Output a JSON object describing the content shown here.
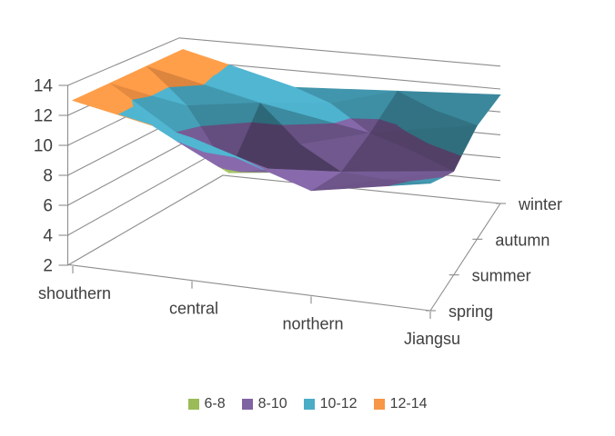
{
  "chart_data": {
    "type": "surface",
    "title": "",
    "category_axis": {
      "categories": [
        "shouthern",
        "central",
        "northern",
        "Jiangsu"
      ]
    },
    "depth_axis": {
      "categories": [
        "spring",
        "summer",
        "autumn",
        "winter"
      ]
    },
    "value_axis": {
      "min": 2,
      "max": 14,
      "step": 2,
      "tick_labels": [
        "2",
        "4",
        "6",
        "8",
        "10",
        "12",
        "14"
      ]
    },
    "series": [
      {
        "name": "spring",
        "values": [
          13,
          11.5,
          9,
          10.5
        ]
      },
      {
        "name": "summer",
        "values": [
          13,
          7.5,
          8.5,
          9.5
        ]
      },
      {
        "name": "autumn",
        "values": [
          13,
          11,
          9.5,
          11
        ]
      },
      {
        "name": "winter",
        "values": [
          13,
          10.5,
          11,
          11.5
        ]
      }
    ],
    "bands": [
      {
        "label": "6-8",
        "min": 6,
        "max": 8,
        "color": "#9BBB59"
      },
      {
        "label": "8-10",
        "min": 8,
        "max": 10,
        "color": "#8064A2"
      },
      {
        "label": "10-12",
        "min": 10,
        "max": 12,
        "color": "#4BACC6"
      },
      {
        "label": "12-14",
        "min": 12,
        "max": 14,
        "color": "#F79646"
      }
    ],
    "legend_position": "bottom",
    "grid": true,
    "colors": {
      "gridline": "#8D8D8D",
      "text": "#3F3F3F",
      "background": "#FFFFFF"
    }
  }
}
